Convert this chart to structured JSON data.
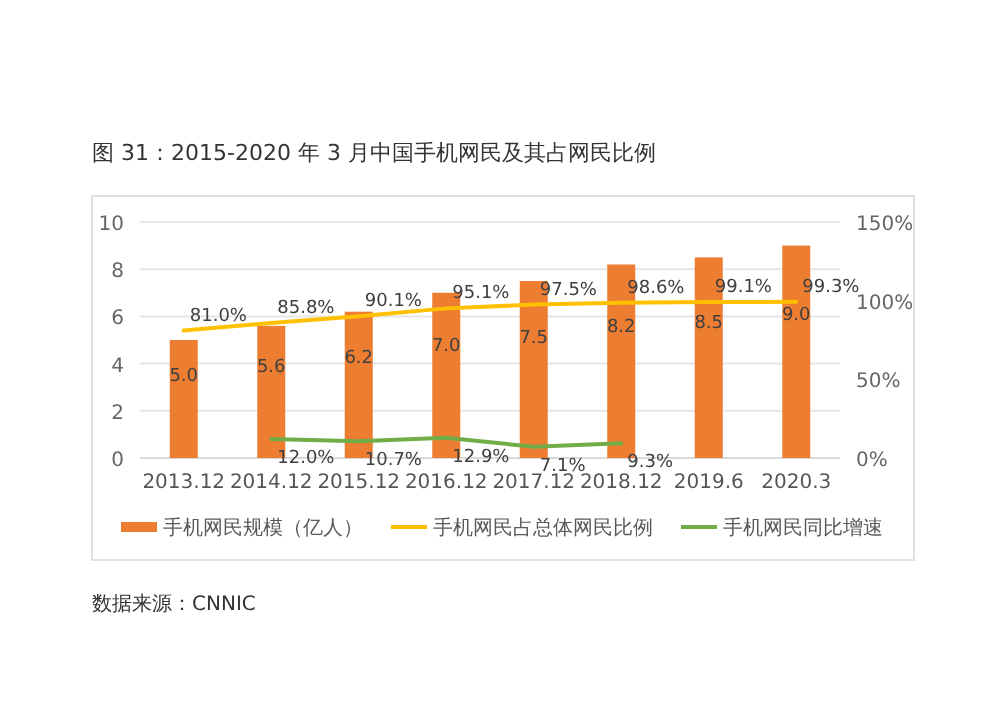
{
  "chart_data": {
    "type": "bar",
    "title": "图 31：2015-2020 年 3 月中国手机网民及其占网民比例",
    "categories": [
      "2013.12",
      "2014.12",
      "2015.12",
      "2016.12",
      "2017.12",
      "2018.12",
      "2019.6",
      "2020.3"
    ],
    "series": [
      {
        "name": "手机网民规模（亿人）",
        "color": "#ed7d31",
        "values": [
          5.0,
          5.6,
          6.2,
          7.0,
          7.5,
          8.2,
          8.5,
          9.0
        ],
        "value_labels": [
          "5.0",
          "5.6",
          "6.2",
          "7.0",
          "7.5",
          "8.2",
          "8.5",
          "9.0"
        ]
      },
      {
        "name": "手机网民占总体网民比例",
        "type": "line",
        "axis": "y2",
        "color": "#ffc000",
        "values": [
          81.0,
          85.8,
          90.1,
          95.1,
          97.5,
          98.6,
          99.1,
          99.3
        ],
        "value_labels": [
          "81.0%",
          "85.8%",
          "90.1%",
          "95.1%",
          "97.5%",
          "98.6%",
          "99.1%",
          "99.3%"
        ]
      },
      {
        "name": "手机网民同比增速",
        "type": "line",
        "axis": "y2",
        "color": "#70ad47",
        "values": [
          null,
          12.0,
          10.7,
          12.9,
          7.1,
          9.3,
          null,
          null
        ],
        "value_labels": [
          null,
          "12.0%",
          "10.7%",
          "12.9%",
          "7.1%",
          "9.3%",
          null,
          null
        ]
      }
    ],
    "ylim": [
      0,
      10
    ],
    "yticks": [
      0,
      2,
      4,
      6,
      8,
      10
    ],
    "y2lim": [
      0,
      150
    ],
    "y2ticks": [
      {
        "value": 0,
        "label": "0%"
      },
      {
        "value": 50,
        "label": "50%"
      },
      {
        "value": 100,
        "label": "100%"
      },
      {
        "value": 150,
        "label": "150%"
      }
    ],
    "grid": "y",
    "legend": "bottom",
    "marker": "none",
    "annotations": [
      "数据来源：CNNIC"
    ]
  }
}
